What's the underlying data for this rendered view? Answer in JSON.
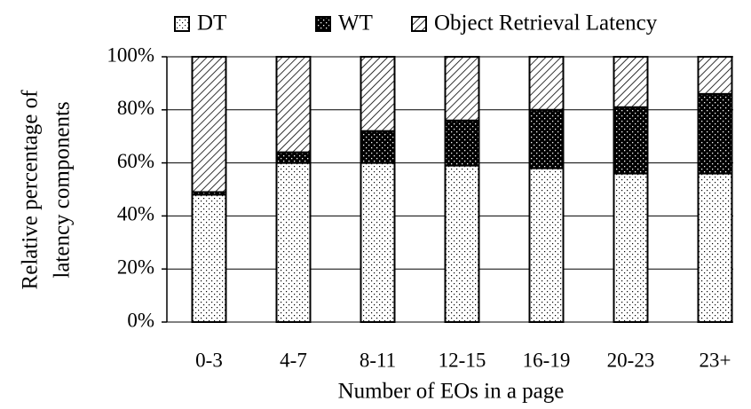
{
  "chart_data": {
    "type": "stacked_bar",
    "xlabel": "Number of EOs in a page",
    "ylabel": [
      "Relative percentage of",
      "latency components"
    ],
    "categories": [
      "0-3",
      "4-7",
      "8-11",
      "12-15",
      "16-19",
      "20-23",
      "23+"
    ],
    "series": [
      {
        "name": "DT",
        "color": "#000000",
        "pattern": "dots",
        "values": [
          48,
          60,
          60,
          59,
          58,
          56,
          56
        ]
      },
      {
        "name": "WT",
        "color": "#000000",
        "pattern": "dense-dots",
        "values": [
          1,
          4,
          12,
          17,
          22,
          25,
          30
        ]
      },
      {
        "name": "Object Retrieval Latency",
        "color": "#000000",
        "pattern": "hatch",
        "values": [
          51,
          36,
          28,
          24,
          20,
          19,
          14
        ]
      }
    ],
    "ylim": [
      0,
      100
    ],
    "yticks": [
      {
        "value": 0,
        "label": "0%"
      },
      {
        "value": 20,
        "label": "20%"
      },
      {
        "value": 40,
        "label": "40%"
      },
      {
        "value": 60,
        "label": "60%"
      },
      {
        "value": 80,
        "label": "80%"
      },
      {
        "value": 100,
        "label": "100%"
      }
    ],
    "grid": true,
    "legend": "top"
  }
}
